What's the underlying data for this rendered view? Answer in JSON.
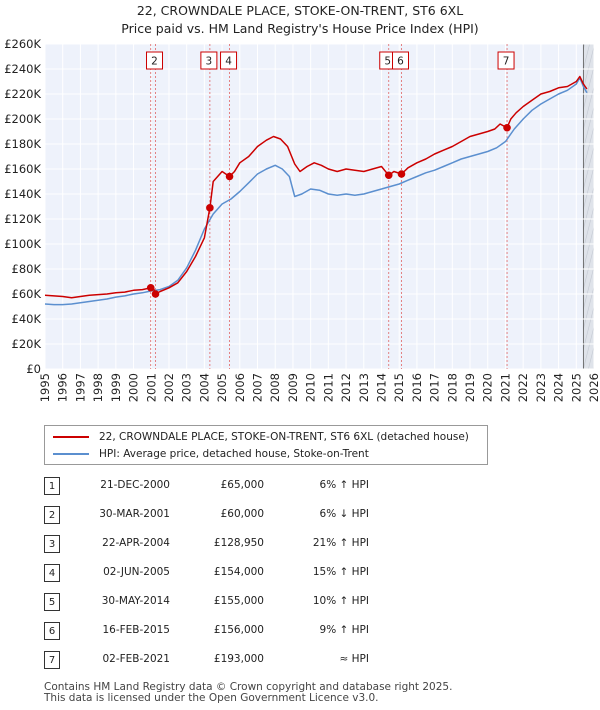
{
  "chart_data": {
    "type": "line",
    "title": "22, CROWNDALE PLACE, STOKE-ON-TRENT, ST6 6XL",
    "subtitle": "Price paid vs. HM Land Registry's House Price Index (HPI)",
    "xlim": [
      1995,
      2026
    ],
    "ylim": [
      0,
      260000
    ],
    "x_ticks": [
      "1995",
      "1996",
      "1997",
      "1998",
      "1999",
      "2000",
      "2001",
      "2002",
      "2003",
      "2004",
      "2005",
      "2006",
      "2007",
      "2008",
      "2009",
      "2010",
      "2011",
      "2012",
      "2013",
      "2014",
      "2015",
      "2016",
      "2017",
      "2018",
      "2019",
      "2020",
      "2021",
      "2022",
      "2023",
      "2024",
      "2025",
      "2026"
    ],
    "y_ticks": [
      {
        "value": 0,
        "label": "£0"
      },
      {
        "value": 20000,
        "label": "£20K"
      },
      {
        "value": 40000,
        "label": "£40K"
      },
      {
        "value": 60000,
        "label": "£60K"
      },
      {
        "value": 80000,
        "label": "£80K"
      },
      {
        "value": 100000,
        "label": "£100K"
      },
      {
        "value": 120000,
        "label": "£120K"
      },
      {
        "value": 140000,
        "label": "£140K"
      },
      {
        "value": 160000,
        "label": "£160K"
      },
      {
        "value": 180000,
        "label": "£180K"
      },
      {
        "value": 200000,
        "label": "£200K"
      },
      {
        "value": 220000,
        "label": "£220K"
      },
      {
        "value": 240000,
        "label": "£240K"
      },
      {
        "value": 260000,
        "label": "£260K"
      }
    ],
    "forecast_start": 2025.4,
    "series": [
      {
        "name": "22, CROWNDALE PLACE, STOKE-ON-TRENT, ST6 6XL (detached house)",
        "color": "#cc0000",
        "x": [
          1995.0,
          1995.5,
          1996.0,
          1996.5,
          1997.0,
          1997.5,
          1998.0,
          1998.5,
          1999.0,
          1999.5,
          2000.0,
          2000.5,
          2000.97,
          2001.1,
          2001.24,
          2001.5,
          2002.0,
          2002.5,
          2003.0,
          2003.5,
          2004.0,
          2004.31,
          2004.5,
          2005.0,
          2005.42,
          2005.7,
          2006.0,
          2006.5,
          2007.0,
          2007.5,
          2007.9,
          2008.3,
          2008.7,
          2009.1,
          2009.4,
          2009.8,
          2010.2,
          2010.6,
          2011.0,
          2011.5,
          2012.0,
          2012.5,
          2013.0,
          2013.5,
          2014.0,
          2014.41,
          2014.7,
          2015.13,
          2015.5,
          2016.0,
          2016.5,
          2017.0,
          2017.5,
          2018.0,
          2018.5,
          2019.0,
          2019.5,
          2020.0,
          2020.4,
          2020.7,
          2021.09,
          2021.3,
          2021.6,
          2022.0,
          2022.5,
          2023.0,
          2023.5,
          2024.0,
          2024.5,
          2025.0,
          2025.2,
          2025.4,
          2025.6
        ],
        "y": [
          59000,
          58500,
          58000,
          57000,
          58000,
          59000,
          59500,
          60000,
          61000,
          61500,
          63000,
          63500,
          65000,
          66000,
          60000,
          62000,
          65000,
          69000,
          78000,
          90000,
          105000,
          128950,
          150000,
          158000,
          154000,
          158000,
          165000,
          170000,
          178000,
          183000,
          186000,
          184000,
          178000,
          164000,
          158000,
          162000,
          165000,
          163000,
          160000,
          158000,
          160000,
          159000,
          158000,
          160000,
          162000,
          155000,
          158000,
          156000,
          161000,
          165000,
          168000,
          172000,
          175000,
          178000,
          182000,
          186000,
          188000,
          190000,
          192000,
          196000,
          193000,
          200000,
          205000,
          210000,
          215000,
          220000,
          222000,
          225000,
          226000,
          230000,
          234000,
          228000,
          224000
        ]
      },
      {
        "name": "HPI: Average price, detached house, Stoke-on-Trent",
        "color": "#5b8fcf",
        "x": [
          1995.0,
          1995.5,
          1996.0,
          1996.5,
          1997.0,
          1997.5,
          1998.0,
          1998.5,
          1999.0,
          1999.5,
          2000.0,
          2000.5,
          2001.0,
          2001.5,
          2002.0,
          2002.5,
          2003.0,
          2003.5,
          2004.0,
          2004.5,
          2005.0,
          2005.5,
          2006.0,
          2006.5,
          2007.0,
          2007.5,
          2008.0,
          2008.4,
          2008.8,
          2009.1,
          2009.5,
          2010.0,
          2010.5,
          2011.0,
          2011.5,
          2012.0,
          2012.5,
          2013.0,
          2013.5,
          2014.0,
          2014.5,
          2015.0,
          2015.5,
          2016.0,
          2016.5,
          2017.0,
          2017.5,
          2018.0,
          2018.5,
          2019.0,
          2019.5,
          2020.0,
          2020.5,
          2021.0,
          2021.5,
          2022.0,
          2022.5,
          2023.0,
          2023.5,
          2024.0,
          2024.5,
          2025.0,
          2025.2,
          2025.4,
          2025.6
        ],
        "y": [
          52000,
          51500,
          51500,
          52000,
          53000,
          54000,
          55000,
          56000,
          57500,
          58500,
          60000,
          61000,
          62500,
          63500,
          66000,
          71000,
          81000,
          95000,
          112000,
          124000,
          132000,
          136000,
          142000,
          149000,
          156000,
          160000,
          163000,
          160000,
          154000,
          138000,
          140000,
          144000,
          143000,
          140000,
          139000,
          140000,
          139000,
          140000,
          142000,
          144000,
          146000,
          148000,
          151000,
          154000,
          157000,
          159000,
          162000,
          165000,
          168000,
          170000,
          172000,
          174000,
          177000,
          182000,
          192000,
          200000,
          207000,
          212000,
          216000,
          220000,
          223000,
          228000,
          233000,
          226000,
          221000
        ]
      }
    ],
    "sale_markers": [
      {
        "label": "2",
        "x": 2001.24,
        "y": 60000
      },
      {
        "label": "3",
        "x": 2004.31,
        "y": 128950
      },
      {
        "label": "4",
        "x": 2005.42,
        "y": 154000
      },
      {
        "label": "5",
        "x": 2014.41,
        "y": 155000
      },
      {
        "label": "6",
        "x": 2015.13,
        "y": 156000
      },
      {
        "label": "7",
        "x": 2021.09,
        "y": 193000
      }
    ],
    "sale_points": [
      {
        "x": 2000.97,
        "y": 65000
      },
      {
        "x": 2001.24,
        "y": 60000
      },
      {
        "x": 2004.31,
        "y": 128950
      },
      {
        "x": 2005.42,
        "y": 154000
      },
      {
        "x": 2014.41,
        "y": 155000
      },
      {
        "x": 2015.13,
        "y": 156000
      },
      {
        "x": 2021.09,
        "y": 193000
      }
    ]
  },
  "legend": {
    "property_label": "22, CROWNDALE PLACE, STOKE-ON-TRENT, ST6 6XL (detached house)",
    "hpi_label": "HPI: Average price, detached house, Stoke-on-Trent",
    "property_color": "#cc0000",
    "hpi_color": "#5b8fcf"
  },
  "sales": [
    {
      "num": "1",
      "date": "21-DEC-2000",
      "price": "£65,000",
      "hpi": "6% ↑ HPI"
    },
    {
      "num": "2",
      "date": "30-MAR-2001",
      "price": "£60,000",
      "hpi": "6% ↓ HPI"
    },
    {
      "num": "3",
      "date": "22-APR-2004",
      "price": "£128,950",
      "hpi": "21% ↑ HPI"
    },
    {
      "num": "4",
      "date": "02-JUN-2005",
      "price": "£154,000",
      "hpi": "15% ↑ HPI"
    },
    {
      "num": "5",
      "date": "30-MAY-2014",
      "price": "£155,000",
      "hpi": "10% ↑ HPI"
    },
    {
      "num": "6",
      "date": "16-FEB-2015",
      "price": "£156,000",
      "hpi": "9% ↑ HPI"
    },
    {
      "num": "7",
      "date": "02-FEB-2021",
      "price": "£193,000",
      "hpi": "≈ HPI"
    }
  ],
  "footer": {
    "line1": "Contains HM Land Registry data © Crown copyright and database right 2025.",
    "line2": "This data is licensed under the Open Government Licence v3.0."
  }
}
